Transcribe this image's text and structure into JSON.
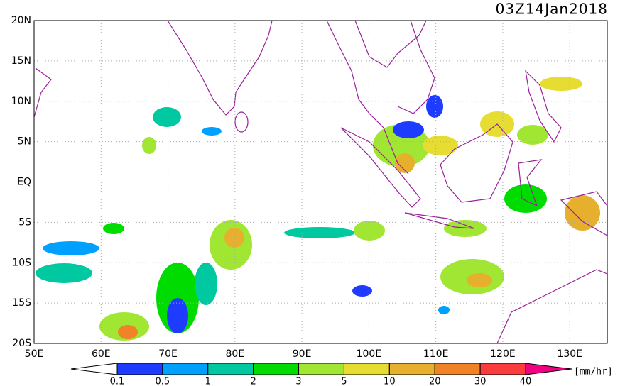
{
  "map": {
    "title": "03Z14Jan2018",
    "lonlim": [
      50,
      135.6
    ],
    "latlim": [
      -20,
      20
    ],
    "lon_ticks": [
      {
        "value": 50,
        "label": "50E"
      },
      {
        "value": 60,
        "label": "60E"
      },
      {
        "value": 70,
        "label": "70E"
      },
      {
        "value": 80,
        "label": "80E"
      },
      {
        "value": 90,
        "label": "90E"
      },
      {
        "value": 100,
        "label": "100E"
      },
      {
        "value": 110,
        "label": "110E"
      },
      {
        "value": 120,
        "label": "120E"
      },
      {
        "value": 130,
        "label": "130E"
      }
    ],
    "lat_ticks": [
      {
        "value": 20,
        "label": "20N"
      },
      {
        "value": 15,
        "label": "15N"
      },
      {
        "value": 10,
        "label": "10N"
      },
      {
        "value": 5,
        "label": "5N"
      },
      {
        "value": 0,
        "label": "EQ"
      },
      {
        "value": -5,
        "label": "5S"
      },
      {
        "value": -10,
        "label": "10S"
      },
      {
        "value": -15,
        "label": "15S"
      },
      {
        "value": -20,
        "label": "20S"
      }
    ],
    "colorbar": {
      "levels": [
        0.1,
        0.5,
        1,
        2,
        3,
        5,
        10,
        20,
        30,
        40
      ],
      "colors": [
        "#ffffff",
        "#1e3cff",
        "#00a0ff",
        "#00c8a0",
        "#00dc00",
        "#a0e632",
        "#e6dc32",
        "#e6af2d",
        "#f08228",
        "#fa3c3c",
        "#f00082"
      ],
      "unit": "[mm/hr]"
    }
  }
}
